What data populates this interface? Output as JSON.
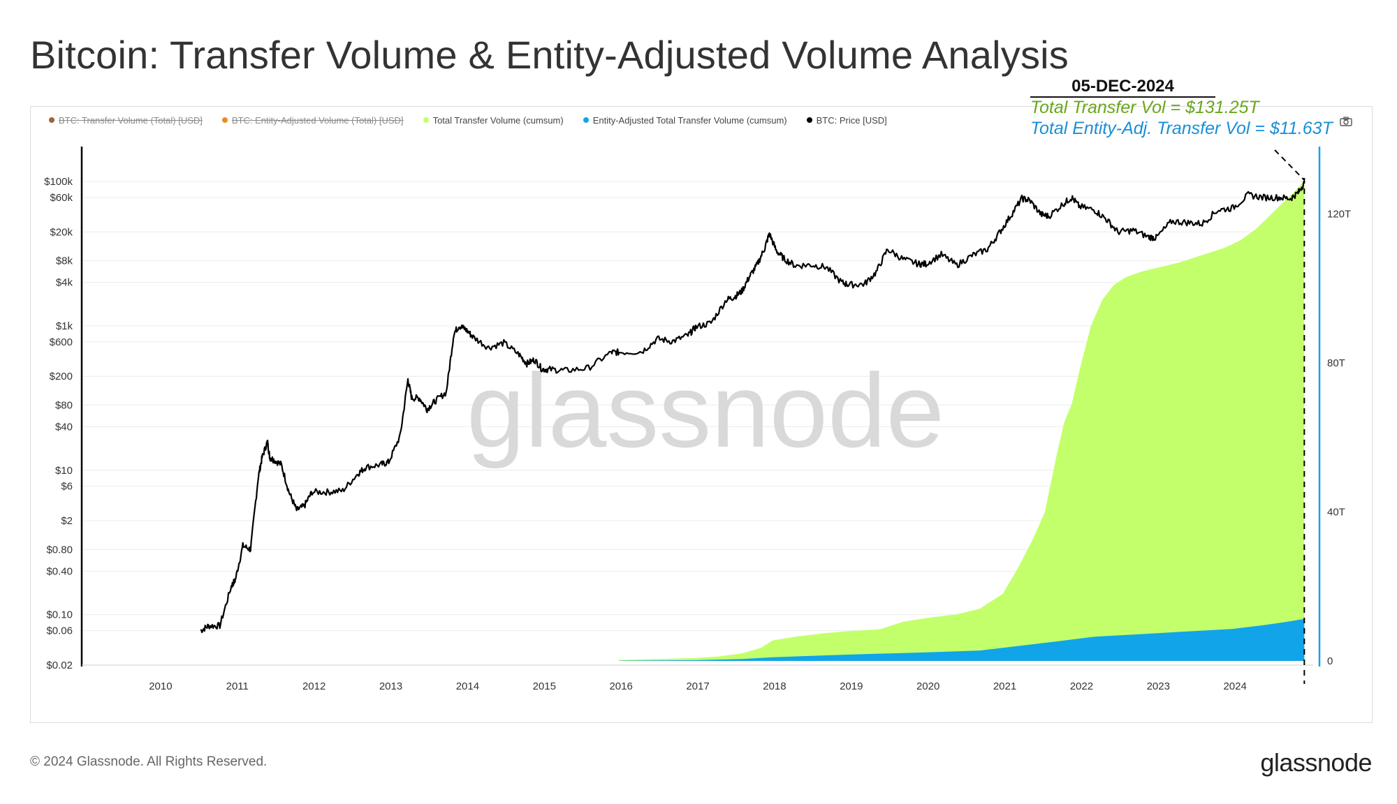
{
  "title": "Bitcoin: Transfer Volume & Entity-Adjusted Volume Analysis",
  "legend": [
    {
      "label": "BTC: Transfer Volume (Total) [USD]",
      "color": "#a0633a",
      "hidden": true
    },
    {
      "label": "BTC: Entity-Adjusted Volume (Total) [USD]",
      "color": "#e88a2a",
      "hidden": true
    },
    {
      "label": "Total Transfer Volume (cumsum)",
      "color": "#c3ff6b",
      "hidden": false
    },
    {
      "label": "Entity-Adjusted Total Transfer Volume (cumsum)",
      "color": "#12a4e8",
      "hidden": false
    },
    {
      "label": "BTC: Price [USD]",
      "color": "#000000",
      "hidden": false
    }
  ],
  "annotation": {
    "date": "05-DEC-2024",
    "total_line": "Total Transfer Vol = $131.25T",
    "entity_line": "Total Entity-Adj. Transfer Vol = $11.63T"
  },
  "watermark": "glassnode",
  "footer": {
    "copyright": "© 2024 Glassnode. All Rights Reserved.",
    "logo": "glassnode"
  },
  "icons": {
    "camera": "camera-icon"
  },
  "chart_data": {
    "type": "area",
    "x_range": [
      2009.0,
      2025.0
    ],
    "x_ticks": [
      "2010",
      "2011",
      "2012",
      "2013",
      "2014",
      "2015",
      "2016",
      "2017",
      "2018",
      "2019",
      "2020",
      "2021",
      "2022",
      "2023",
      "2024"
    ],
    "y_left_scale": "log",
    "y_left_range": [
      0.02,
      100000
    ],
    "y_left_ticks": [
      {
        "label": "$100k",
        "value": 100000
      },
      {
        "label": "$60k",
        "value": 60000
      },
      {
        "label": "$20k",
        "value": 20000
      },
      {
        "label": "$8k",
        "value": 8000
      },
      {
        "label": "$4k",
        "value": 4000
      },
      {
        "label": "$1k",
        "value": 1000
      },
      {
        "label": "$600",
        "value": 600
      },
      {
        "label": "$200",
        "value": 200
      },
      {
        "label": "$80",
        "value": 80
      },
      {
        "label": "$40",
        "value": 40
      },
      {
        "label": "$10",
        "value": 10
      },
      {
        "label": "$6",
        "value": 6
      },
      {
        "label": "$2",
        "value": 2
      },
      {
        "label": "$0.80",
        "value": 0.8
      },
      {
        "label": "$0.40",
        "value": 0.4
      },
      {
        "label": "$0.10",
        "value": 0.1
      },
      {
        "label": "$0.06",
        "value": 0.06
      },
      {
        "label": "$0.02",
        "value": 0.02
      }
    ],
    "y_right_range": [
      0,
      150
    ],
    "y_right_ticks": [
      {
        "label": "0",
        "value": 0
      },
      {
        "label": "40T",
        "value": 40
      },
      {
        "label": "80T",
        "value": 80
      },
      {
        "label": "120T",
        "value": 120
      }
    ],
    "grid": true,
    "legend_position": "top-left",
    "series": [
      {
        "name": "Total Transfer Volume (cumsum)",
        "axis": "right",
        "color": "#c3ff6b",
        "x": [
          2016.0,
          2016.5,
          2017.0,
          2017.3,
          2017.6,
          2017.85,
          2018.0,
          2018.3,
          2018.7,
          2019.0,
          2019.4,
          2019.7,
          2020.0,
          2020.4,
          2020.7,
          2021.0,
          2021.2,
          2021.4,
          2021.55,
          2021.7,
          2021.8,
          2021.9,
          2022.0,
          2022.15,
          2022.3,
          2022.45,
          2022.6,
          2022.8,
          2023.0,
          2023.3,
          2023.6,
          2023.9,
          2024.1,
          2024.3,
          2024.6,
          2024.8,
          2024.93
        ],
        "y": [
          0.3,
          0.5,
          0.8,
          1.2,
          2.0,
          3.5,
          5.5,
          6.5,
          7.5,
          8.0,
          8.5,
          10.5,
          11.5,
          12.5,
          14.0,
          18.0,
          25.0,
          33.0,
          40.0,
          55.0,
          64.0,
          69.0,
          78.0,
          90.0,
          97.0,
          101.0,
          103.0,
          104.5,
          105.5,
          107.0,
          109.0,
          111.0,
          113.0,
          116.0,
          122.0,
          126.0,
          129.0
        ]
      },
      {
        "name": "Entity-Adjusted Total Transfer Volume (cumsum)",
        "axis": "right",
        "color": "#12a4e8",
        "x": [
          2016.0,
          2017.0,
          2017.6,
          2018.0,
          2019.0,
          2020.0,
          2020.7,
          2021.0,
          2021.4,
          2021.8,
          2022.2,
          2022.8,
          2023.3,
          2024.0,
          2024.4,
          2024.7,
          2024.93
        ],
        "y": [
          0.05,
          0.2,
          0.5,
          1.0,
          1.7,
          2.3,
          2.8,
          3.5,
          4.5,
          5.5,
          6.5,
          7.2,
          7.8,
          8.6,
          9.6,
          10.5,
          11.3
        ]
      },
      {
        "name": "BTC: Price [USD]",
        "axis": "left",
        "color": "#000000",
        "x": [
          2010.55,
          2010.65,
          2010.8,
          2010.95,
          2011.0,
          2011.1,
          2011.2,
          2011.3,
          2011.35,
          2011.42,
          2011.45,
          2011.5,
          2011.6,
          2011.7,
          2011.8,
          2011.9,
          2012.0,
          2012.2,
          2012.4,
          2012.6,
          2012.7,
          2012.9,
          2013.0,
          2013.15,
          2013.25,
          2013.3,
          2013.4,
          2013.5,
          2013.6,
          2013.75,
          2013.85,
          2013.92,
          2014.0,
          2014.1,
          2014.3,
          2014.5,
          2014.7,
          2014.8,
          2014.9,
          2015.0,
          2015.1,
          2015.3,
          2015.6,
          2015.9,
          2016.0,
          2016.3,
          2016.5,
          2016.7,
          2016.9,
          2017.0,
          2017.2,
          2017.4,
          2017.5,
          2017.6,
          2017.7,
          2017.8,
          2017.9,
          2017.96,
          2018.05,
          2018.15,
          2018.3,
          2018.5,
          2018.7,
          2018.9,
          2019.0,
          2019.2,
          2019.35,
          2019.5,
          2019.7,
          2019.9,
          2020.0,
          2020.2,
          2020.4,
          2020.6,
          2020.8,
          2020.95,
          2021.1,
          2021.25,
          2021.35,
          2021.5,
          2021.6,
          2021.8,
          2021.9,
          2022.0,
          2022.2,
          2022.35,
          2022.5,
          2022.7,
          2022.9,
          2023.0,
          2023.2,
          2023.4,
          2023.6,
          2023.8,
          2024.0,
          2024.2,
          2024.4,
          2024.6,
          2024.75,
          2024.85,
          2024.93
        ],
        "y": [
          0.06,
          0.07,
          0.07,
          0.25,
          0.3,
          0.9,
          0.8,
          8,
          15,
          25,
          15,
          14,
          12,
          5,
          2.8,
          3.2,
          5,
          5,
          5.2,
          9,
          11,
          12,
          13,
          30,
          180,
          100,
          100,
          70,
          90,
          120,
          800,
          1000,
          900,
          700,
          500,
          580,
          400,
          300,
          340,
          250,
          250,
          240,
          260,
          430,
          430,
          440,
          660,
          610,
          740,
          960,
          1100,
          2300,
          2500,
          3000,
          4800,
          7000,
          12000,
          19000,
          11000,
          8500,
          6800,
          7000,
          6500,
          4000,
          3700,
          3800,
          5500,
          11500,
          8400,
          7200,
          7200,
          9700,
          6900,
          9400,
          11500,
          19000,
          33000,
          58000,
          55000,
          35000,
          33000,
          50000,
          60000,
          45000,
          40000,
          30000,
          20000,
          21000,
          17000,
          16600,
          28000,
          27000,
          26000,
          40000,
          43000,
          65000,
          60000,
          60000,
          58000,
          70000,
          96000
        ]
      }
    ]
  }
}
